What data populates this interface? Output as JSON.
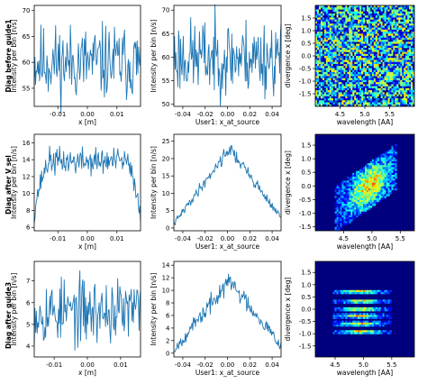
{
  "figure": {
    "rows": [
      {
        "label": "Diag before guide1"
      },
      {
        "label": "Diag after V sel"
      },
      {
        "label": "Diag after guide3"
      }
    ]
  },
  "colors": {
    "line": "#1f77b4",
    "heat_bg": "#00007f"
  },
  "chart_data": [
    {
      "id": "r0c0",
      "type": "line",
      "xlabel": "x [m]",
      "ylabel": "Intensity per bin [n/s]",
      "xlim": [
        -0.018,
        0.018
      ],
      "ylim": [
        51.5,
        71
      ],
      "xticks": [
        "-0.01",
        "0.00",
        "0.01"
      ],
      "xtick_values": [
        -0.01,
        0,
        0.01
      ],
      "yticks": [
        "55",
        "60",
        "65",
        "70"
      ],
      "ytick_values": [
        55,
        60,
        65,
        70
      ],
      "profile": {
        "kind": "flat",
        "level": 60,
        "noise": 3.6,
        "n": 160,
        "seed": 11
      }
    },
    {
      "id": "r0c1",
      "type": "line",
      "xlabel": "User1: x_at_source",
      "ylabel": "Intensity per bin [n/s]",
      "xlim": [
        -0.048,
        0.048
      ],
      "ylim": [
        49.5,
        71
      ],
      "xticks": [
        "-0.04",
        "-0.02",
        "0.00",
        "0.02",
        "0.04"
      ],
      "xtick_values": [
        -0.04,
        -0.02,
        0,
        0.02,
        0.04
      ],
      "yticks": [
        "50",
        "55",
        "60",
        "65",
        "70"
      ],
      "ytick_values": [
        50,
        55,
        60,
        65,
        70
      ],
      "profile": {
        "kind": "flat",
        "level": 60,
        "noise": 4,
        "n": 160,
        "seed": 23
      }
    },
    {
      "id": "r0c2",
      "type": "heatmap",
      "xlabel": "wavelength [AA]",
      "ylabel": "divergence x [deg]",
      "xlim": [
        4.0,
        6.0
      ],
      "ylim": [
        -2.0,
        2.0
      ],
      "xticks": [
        "4.5",
        "5.0",
        "5.5"
      ],
      "xtick_values": [
        4.5,
        5.0,
        5.5
      ],
      "yticks": [
        "-1.5",
        "-1.0",
        "-0.5",
        "0.0",
        "0.5",
        "1.0",
        "1.5"
      ],
      "ytick_values": [
        -1.5,
        -1,
        -0.5,
        0,
        0.5,
        1,
        1.5
      ],
      "pattern": "uniform"
    },
    {
      "id": "r1c0",
      "type": "line",
      "xlabel": "x [m]",
      "ylabel": "Intensity per bin [n/s]",
      "xlim": [
        -0.018,
        0.018
      ],
      "ylim": [
        5.6,
        17
      ],
      "xticks": [
        "-0.01",
        "0.00",
        "0.01"
      ],
      "xtick_values": [
        -0.01,
        0,
        0.01
      ],
      "yticks": [
        "6",
        "8",
        "10",
        "12",
        "14",
        "16"
      ],
      "ytick_values": [
        6,
        8,
        10,
        12,
        14,
        16
      ],
      "profile": {
        "kind": "plateau",
        "level": 13.8,
        "edge": 7,
        "noise": 0.8,
        "n": 160,
        "seed": 37
      }
    },
    {
      "id": "r1c1",
      "type": "line",
      "xlabel": "User1: x_at_source",
      "ylabel": "Intensity per bin [n/s]",
      "xlim": [
        -0.048,
        0.048
      ],
      "ylim": [
        -0.8,
        27
      ],
      "xticks": [
        "-0.04",
        "-0.02",
        "0.00",
        "0.02",
        "0.04"
      ],
      "xtick_values": [
        -0.04,
        -0.02,
        0,
        0.02,
        0.04
      ],
      "yticks": [
        "0",
        "5",
        "10",
        "15",
        "20",
        "25"
      ],
      "ytick_values": [
        0,
        5,
        10,
        15,
        20,
        25
      ],
      "profile": {
        "kind": "tri",
        "peak": 23,
        "base": 1.2,
        "noise": 1.1,
        "n": 160,
        "seed": 41
      }
    },
    {
      "id": "r1c2",
      "type": "heatmap",
      "xlabel": "wavelength [AA]",
      "ylabel": "divergence x [deg]",
      "xlim": [
        4.0,
        5.75
      ],
      "ylim": [
        -1.65,
        1.9
      ],
      "xticks": [
        "4.5",
        "5.0",
        "5.5"
      ],
      "xtick_values": [
        4.5,
        5.0,
        5.5
      ],
      "yticks": [
        "-1.5",
        "-1.0",
        "-0.5",
        "0.0",
        "0.5",
        "1.0",
        "1.5"
      ],
      "ytick_values": [
        -1.5,
        -1,
        -0.5,
        0,
        0.5,
        1,
        1.5
      ],
      "pattern": "parallelogram"
    },
    {
      "id": "r2c0",
      "type": "line",
      "xlabel": "x [m]",
      "ylabel": "Intensity per bin [n/s]",
      "xlim": [
        -0.016,
        0.016
      ],
      "ylim": [
        3.5,
        7.9
      ],
      "xticks": [
        "-0.01",
        "0.00",
        "0.01"
      ],
      "xtick_values": [
        -0.01,
        0,
        0.01
      ],
      "yticks": [
        "4",
        "5",
        "6",
        "7"
      ],
      "ytick_values": [
        4,
        5,
        6,
        7
      ],
      "profile": {
        "kind": "flat",
        "level": 5.6,
        "noise": 0.75,
        "n": 150,
        "seed": 53
      }
    },
    {
      "id": "r2c1",
      "type": "line",
      "xlabel": "User1: x_at_source",
      "ylabel": "Intensity per bin [n/s]",
      "xlim": [
        -0.048,
        0.048
      ],
      "ylim": [
        -0.6,
        14.6
      ],
      "xticks": [
        "-0.04",
        "-0.02",
        "0.00",
        "0.02",
        "0.04"
      ],
      "xtick_values": [
        -0.04,
        -0.02,
        0,
        0.02,
        0.04
      ],
      "yticks": [
        "0",
        "2",
        "4",
        "6",
        "8",
        "10",
        "12",
        "14"
      ],
      "ytick_values": [
        0,
        2,
        4,
        6,
        8,
        10,
        12,
        14
      ],
      "profile": {
        "kind": "tri",
        "peak": 11.5,
        "base": 0.5,
        "noise": 0.9,
        "n": 160,
        "seed": 67
      }
    },
    {
      "id": "r2c2",
      "type": "heatmap",
      "xlabel": "wavelength [AA]",
      "ylabel": "divergence x [deg]",
      "xlim": [
        4.15,
        5.9
      ],
      "ylim": [
        -1.95,
        1.95
      ],
      "xticks": [
        "4.5",
        "5.0",
        "5.5"
      ],
      "xtick_values": [
        4.5,
        5.0,
        5.5
      ],
      "yticks": [
        "-1.5",
        "-1.0",
        "-0.5",
        "0.0",
        "0.5",
        "1.0",
        "1.5"
      ],
      "ytick_values": [
        -1.5,
        -1,
        -0.5,
        0,
        0.5,
        1,
        1.5
      ],
      "pattern": "bands"
    }
  ]
}
